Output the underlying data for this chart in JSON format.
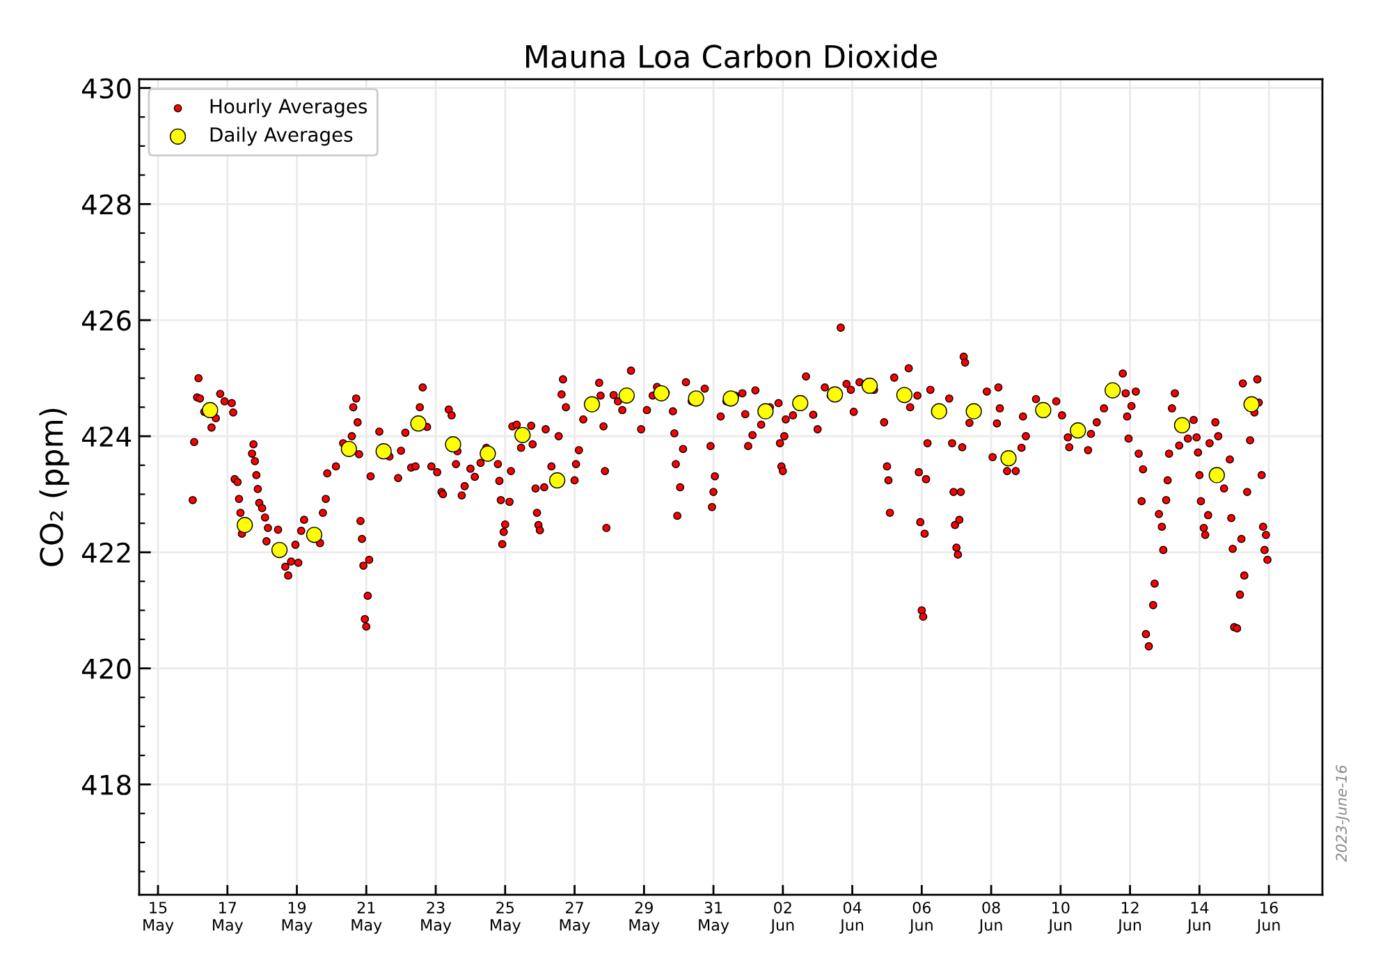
{
  "chart_data": {
    "type": "scatter",
    "title": "Mauna Loa Carbon Dioxide",
    "ylabel": "CO₂ (ppm)",
    "annotations": [
      "2023-June-16"
    ],
    "xlim": [
      "2023-05-14T11:00",
      "2023-06-17T13:00"
    ],
    "xticks": [
      {
        "value": "2023-05-15",
        "label": "15\nMay"
      },
      {
        "value": "2023-05-17",
        "label": "17\nMay"
      },
      {
        "value": "2023-05-19",
        "label": "19\nMay"
      },
      {
        "value": "2023-05-21",
        "label": "21\nMay"
      },
      {
        "value": "2023-05-23",
        "label": "23\nMay"
      },
      {
        "value": "2023-05-25",
        "label": "25\nMay"
      },
      {
        "value": "2023-05-27",
        "label": "27\nMay"
      },
      {
        "value": "2023-05-29",
        "label": "29\nMay"
      },
      {
        "value": "2023-05-31",
        "label": "31\nMay"
      },
      {
        "value": "2023-06-02",
        "label": "02\nJun"
      },
      {
        "value": "2023-06-04",
        "label": "04\nJun"
      },
      {
        "value": "2023-06-06",
        "label": "06\nJun"
      },
      {
        "value": "2023-06-08",
        "label": "08\nJun"
      },
      {
        "value": "2023-06-10",
        "label": "10\nJun"
      },
      {
        "value": "2023-06-12",
        "label": "12\nJun"
      },
      {
        "value": "2023-06-14",
        "label": "14\nJun"
      },
      {
        "value": "2023-06-16",
        "label": "16\nJun"
      }
    ],
    "ylim": [
      416.1,
      430.15
    ],
    "yticks": [
      {
        "value": 416.5,
        "label": null
      },
      {
        "value": 417,
        "label": null
      },
      {
        "value": 417.5,
        "label": null
      },
      418,
      {
        "value": 418.5,
        "label": null
      },
      {
        "value": 419,
        "label": null
      },
      {
        "value": 419.5,
        "label": null
      },
      420,
      {
        "value": 420.5,
        "label": null
      },
      {
        "value": 421,
        "label": null
      },
      {
        "value": 421.5,
        "label": null
      },
      422,
      {
        "value": 422.5,
        "label": null
      },
      {
        "value": 423,
        "label": null
      },
      {
        "value": 423.5,
        "label": null
      },
      424,
      {
        "value": 424.5,
        "label": null
      },
      {
        "value": 425,
        "label": null
      },
      {
        "value": 425.5,
        "label": null
      },
      426,
      {
        "value": 426.5,
        "label": null
      },
      {
        "value": 427,
        "label": null
      },
      {
        "value": 427.5,
        "label": null
      },
      428,
      {
        "value": 428.5,
        "label": null
      },
      {
        "value": 429,
        "label": null
      },
      {
        "value": 429.5,
        "label": null
      },
      430
    ],
    "grid": true,
    "legend": "top left",
    "marker": "circle",
    "series": [
      {
        "name": "Hourly Averages",
        "color": "#ff0000",
        "x": [
          "2023-05-16T00:00",
          "2023-05-16T01:00",
          "2023-05-16T03:00",
          "2023-05-16T04:00",
          "2023-05-16T05:00",
          "2023-05-16T08:00",
          "2023-05-16T13:00",
          "2023-05-16T16:00",
          "2023-05-16T19:00",
          "2023-05-16T22:00",
          "2023-05-17T03:00",
          "2023-05-17T04:00",
          "2023-05-17T05:00",
          "2023-05-17T07:00",
          "2023-05-17T08:00",
          "2023-05-17T09:00",
          "2023-05-17T10:00",
          "2023-05-17T17:00",
          "2023-05-17T18:00",
          "2023-05-17T19:00",
          "2023-05-17T20:00",
          "2023-05-17T21:00",
          "2023-05-17T22:00",
          "2023-05-18T00:00",
          "2023-05-18T02:00",
          "2023-05-18T03:00",
          "2023-05-18T04:00",
          "2023-05-18T11:00",
          "2023-05-18T16:00",
          "2023-05-18T18:00",
          "2023-05-18T20:00",
          "2023-05-18T23:00",
          "2023-05-19T01:00",
          "2023-05-19T03:00",
          "2023-05-19T05:00",
          "2023-05-19T16:00",
          "2023-05-19T18:00",
          "2023-05-19T20:00",
          "2023-05-19T21:00",
          "2023-05-20T03:00",
          "2023-05-20T08:00",
          "2023-05-20T14:00",
          "2023-05-20T15:00",
          "2023-05-20T17:00",
          "2023-05-20T18:00",
          "2023-05-20T19:00",
          "2023-05-20T20:00",
          "2023-05-20T21:00",
          "2023-05-20T22:00",
          "2023-05-20T23:00",
          "2023-05-21T00:00",
          "2023-05-21T01:00",
          "2023-05-21T02:00",
          "2023-05-21T03:00",
          "2023-05-21T09:00",
          "2023-05-21T16:00",
          "2023-05-21T22:00",
          "2023-05-22T00:00",
          "2023-05-22T03:00",
          "2023-05-22T07:00",
          "2023-05-22T10:00",
          "2023-05-22T13:00",
          "2023-05-22T15:00",
          "2023-05-22T18:00",
          "2023-05-22T21:00",
          "2023-05-23T01:00",
          "2023-05-23T04:00",
          "2023-05-23T05:00",
          "2023-05-23T09:00",
          "2023-05-23T11:00",
          "2023-05-23T14:00",
          "2023-05-23T15:00",
          "2023-05-23T18:00",
          "2023-05-23T20:00",
          "2023-05-24T00:00",
          "2023-05-24T03:00",
          "2023-05-24T07:00",
          "2023-05-24T11:00",
          "2023-05-24T19:00",
          "2023-05-24T20:00",
          "2023-05-24T21:00",
          "2023-05-24T22:00",
          "2023-05-24T23:00",
          "2023-05-25T00:00",
          "2023-05-25T03:00",
          "2023-05-25T04:00",
          "2023-05-25T05:00",
          "2023-05-25T08:00",
          "2023-05-25T11:00",
          "2023-05-25T18:00",
          "2023-05-25T19:00",
          "2023-05-25T21:00",
          "2023-05-25T22:00",
          "2023-05-25T23:00",
          "2023-05-26T00:00",
          "2023-05-26T03:00",
          "2023-05-26T04:00",
          "2023-05-26T08:00",
          "2023-05-26T13:00",
          "2023-05-26T15:00",
          "2023-05-26T16:00",
          "2023-05-26T18:00",
          "2023-05-27T00:00",
          "2023-05-27T01:00",
          "2023-05-27T03:00",
          "2023-05-27T06:00",
          "2023-05-27T17:00",
          "2023-05-27T18:00",
          "2023-05-27T20:00",
          "2023-05-27T21:00",
          "2023-05-27T22:00",
          "2023-05-28T03:00",
          "2023-05-28T06:00",
          "2023-05-28T09:00",
          "2023-05-28T15:00",
          "2023-05-28T22:00",
          "2023-05-29T02:00",
          "2023-05-29T06:00",
          "2023-05-29T09:00",
          "2023-05-29T15:00",
          "2023-05-29T20:00",
          "2023-05-29T21:00",
          "2023-05-29T22:00",
          "2023-05-29T23:00",
          "2023-05-30T01:00",
          "2023-05-30T03:00",
          "2023-05-30T05:00",
          "2023-05-30T09:00",
          "2023-05-30T18:00",
          "2023-05-30T22:00",
          "2023-05-30T23:00",
          "2023-05-31T00:00",
          "2023-05-31T01:00",
          "2023-05-31T05:00",
          "2023-05-31T09:00",
          "2023-05-31T15:00",
          "2023-05-31T20:00",
          "2023-05-31T22:00",
          "2023-06-01T00:00",
          "2023-06-01T03:00",
          "2023-06-01T05:00",
          "2023-06-01T09:00",
          "2023-06-01T15:00",
          "2023-06-01T21:00",
          "2023-06-01T22:00",
          "2023-06-01T23:00",
          "2023-06-02T00:00",
          "2023-06-02T01:00",
          "2023-06-02T02:00",
          "2023-06-02T07:00",
          "2023-06-02T16:00",
          "2023-06-02T21:00",
          "2023-06-03T00:00",
          "2023-06-03T05:00",
          "2023-06-03T09:00",
          "2023-06-03T16:00",
          "2023-06-03T20:00",
          "2023-06-03T23:00",
          "2023-06-04T01:00",
          "2023-06-04T05:00",
          "2023-06-04T09:00",
          "2023-06-04T15:00",
          "2023-06-04T22:00",
          "2023-06-05T00:00",
          "2023-06-05T01:00",
          "2023-06-05T02:00",
          "2023-06-05T05:00",
          "2023-06-05T15:00",
          "2023-06-05T16:00",
          "2023-06-05T21:00",
          "2023-06-05T22:00",
          "2023-06-05T23:00",
          "2023-06-06T00:00",
          "2023-06-06T01:00",
          "2023-06-06T02:00",
          "2023-06-06T03:00",
          "2023-06-06T04:00",
          "2023-06-06T06:00",
          "2023-06-06T19:00",
          "2023-06-06T21:00",
          "2023-06-06T22:00",
          "2023-06-06T23:00",
          "2023-06-07T00:00",
          "2023-06-07T01:00",
          "2023-06-07T02:00",
          "2023-06-07T03:00",
          "2023-06-07T04:00",
          "2023-06-07T05:00",
          "2023-06-07T06:00",
          "2023-06-07T09:00",
          "2023-06-07T21:00",
          "2023-06-08T01:00",
          "2023-06-08T04:00",
          "2023-06-08T05:00",
          "2023-06-08T06:00",
          "2023-06-08T11:00",
          "2023-06-08T17:00",
          "2023-06-08T21:00",
          "2023-06-08T22:00",
          "2023-06-09T00:00",
          "2023-06-09T07:00",
          "2023-06-09T21:00",
          "2023-06-10T01:00",
          "2023-06-10T05:00",
          "2023-06-10T06:00",
          "2023-06-10T19:00",
          "2023-06-10T21:00",
          "2023-06-11T01:00",
          "2023-06-11T06:00",
          "2023-06-11T19:00",
          "2023-06-11T21:00",
          "2023-06-11T22:00",
          "2023-06-11T23:00",
          "2023-06-12T01:00",
          "2023-06-12T04:00",
          "2023-06-12T06:00",
          "2023-06-12T08:00",
          "2023-06-12T09:00",
          "2023-06-12T11:00",
          "2023-06-12T13:00",
          "2023-06-12T16:00",
          "2023-06-12T17:00",
          "2023-06-12T20:00",
          "2023-06-12T22:00",
          "2023-06-12T23:00",
          "2023-06-13T01:00",
          "2023-06-13T02:00",
          "2023-06-13T03:00",
          "2023-06-13T05:00",
          "2023-06-13T07:00",
          "2023-06-13T10:00",
          "2023-06-13T16:00",
          "2023-06-13T20:00",
          "2023-06-13T22:00",
          "2023-06-13T23:00",
          "2023-06-14T00:00",
          "2023-06-14T01:00",
          "2023-06-14T03:00",
          "2023-06-14T04:00",
          "2023-06-14T06:00",
          "2023-06-14T07:00",
          "2023-06-14T11:00",
          "2023-06-14T13:00",
          "2023-06-14T17:00",
          "2023-06-14T21:00",
          "2023-06-14T22:00",
          "2023-06-14T23:00",
          "2023-06-15T00:00",
          "2023-06-15T02:00",
          "2023-06-15T04:00",
          "2023-06-15T05:00",
          "2023-06-15T06:00",
          "2023-06-15T07:00",
          "2023-06-15T09:00",
          "2023-06-15T11:00",
          "2023-06-15T14:00",
          "2023-06-15T16:00",
          "2023-06-15T17:00",
          "2023-06-15T19:00",
          "2023-06-15T20:00",
          "2023-06-15T21:00",
          "2023-06-15T22:00",
          "2023-06-15T23:00"
        ],
        "values": [
          422.9,
          423.9,
          424.67,
          425.0,
          424.65,
          424.42,
          424.15,
          424.31,
          424.73,
          424.6,
          424.57,
          424.41,
          423.26,
          423.21,
          422.92,
          422.68,
          422.32,
          423.7,
          423.86,
          423.57,
          423.33,
          423.09,
          422.85,
          422.76,
          422.6,
          422.19,
          422.42,
          422.39,
          421.75,
          421.6,
          421.84,
          422.13,
          421.82,
          422.37,
          422.56,
          422.16,
          422.68,
          422.92,
          423.36,
          423.48,
          423.88,
          424.0,
          424.5,
          424.65,
          424.24,
          423.69,
          422.54,
          422.23,
          421.77,
          420.85,
          420.72,
          421.25,
          421.87,
          423.31,
          424.08,
          423.65,
          423.28,
          423.75,
          424.06,
          423.46,
          423.48,
          424.5,
          424.84,
          424.16,
          423.48,
          423.38,
          423.04,
          423.0,
          424.46,
          424.36,
          423.52,
          423.74,
          422.98,
          423.14,
          423.44,
          423.3,
          423.54,
          423.8,
          423.52,
          423.23,
          422.9,
          422.14,
          422.35,
          422.48,
          422.87,
          423.4,
          424.17,
          424.2,
          423.8,
          424.18,
          423.86,
          423.1,
          422.68,
          422.47,
          422.38,
          423.12,
          424.12,
          423.48,
          424.0,
          424.72,
          424.98,
          424.5,
          423.24,
          423.52,
          423.76,
          424.29,
          424.92,
          424.7,
          424.17,
          423.4,
          422.42,
          424.71,
          424.6,
          424.45,
          425.13,
          424.12,
          424.45,
          424.7,
          424.85,
          424.75,
          424.43,
          424.05,
          423.52,
          422.63,
          423.12,
          423.78,
          424.93,
          424.6,
          424.82,
          423.83,
          422.78,
          423.04,
          423.31,
          424.34,
          424.6,
          424.7,
          424.74,
          424.38,
          423.83,
          424.02,
          424.79,
          424.2,
          424.5,
          424.57,
          423.88,
          423.48,
          423.4,
          424.0,
          424.29,
          424.36,
          425.03,
          424.37,
          424.12,
          424.84,
          424.7,
          425.87,
          424.9,
          424.8,
          424.42,
          424.93,
          424.9,
          424.8,
          424.24,
          423.48,
          423.24,
          422.68,
          425.01,
          425.17,
          424.5,
          424.7,
          423.38,
          422.52,
          421.0,
          420.89,
          422.32,
          423.26,
          423.88,
          424.8,
          424.65,
          423.88,
          423.04,
          422.47,
          422.08,
          421.96,
          422.56,
          423.04,
          423.81,
          425.37,
          425.27,
          424.23,
          424.77,
          423.64,
          424.22,
          424.84,
          424.48,
          423.4,
          423.4,
          423.8,
          424.34,
          424.0,
          424.64,
          424.6,
          424.36,
          423.98,
          423.81,
          423.76,
          424.04,
          424.24,
          424.48,
          425.08,
          424.74,
          424.34,
          423.96,
          424.52,
          424.77,
          423.7,
          422.88,
          423.43,
          420.59,
          420.38,
          421.09,
          421.46,
          422.66,
          422.44,
          422.04,
          422.9,
          423.24,
          423.7,
          424.48,
          424.74,
          423.84,
          423.96,
          424.28,
          423.98,
          423.72,
          423.33,
          422.88,
          422.42,
          422.3,
          422.64,
          423.88,
          424.24,
          424.0,
          423.1,
          423.6,
          422.59,
          422.06,
          420.71,
          420.69,
          421.27,
          422.23,
          424.91,
          421.6,
          423.04,
          423.93,
          424.41,
          424.98,
          424.58,
          423.33,
          422.44,
          422.04,
          422.3,
          421.87
        ]
      },
      {
        "name": "Daily Averages",
        "color": "#ffff00",
        "x": [
          "2023-05-16T12:00",
          "2023-05-17T12:00",
          "2023-05-18T12:00",
          "2023-05-19T12:00",
          "2023-05-20T12:00",
          "2023-05-21T12:00",
          "2023-05-22T12:00",
          "2023-05-23T12:00",
          "2023-05-24T12:00",
          "2023-05-25T12:00",
          "2023-05-26T12:00",
          "2023-05-27T12:00",
          "2023-05-28T12:00",
          "2023-05-29T12:00",
          "2023-05-30T12:00",
          "2023-05-31T12:00",
          "2023-06-01T12:00",
          "2023-06-02T12:00",
          "2023-06-03T12:00",
          "2023-06-04T12:00",
          "2023-06-05T12:00",
          "2023-06-06T12:00",
          "2023-06-07T12:00",
          "2023-06-08T12:00",
          "2023-06-09T12:00",
          "2023-06-10T12:00",
          "2023-06-11T12:00",
          "2023-06-13T12:00",
          "2023-06-14T12:00",
          "2023-06-15T12:00"
        ],
        "values": [
          424.45,
          422.47,
          422.04,
          422.3,
          423.78,
          423.74,
          424.22,
          423.86,
          423.7,
          424.02,
          423.24,
          424.55,
          424.7,
          424.74,
          424.65,
          424.65,
          424.43,
          424.57,
          424.72,
          424.87,
          424.71,
          424.43,
          424.43,
          423.62,
          424.45,
          424.1,
          424.79,
          424.19,
          423.33,
          424.55
        ]
      }
    ]
  }
}
